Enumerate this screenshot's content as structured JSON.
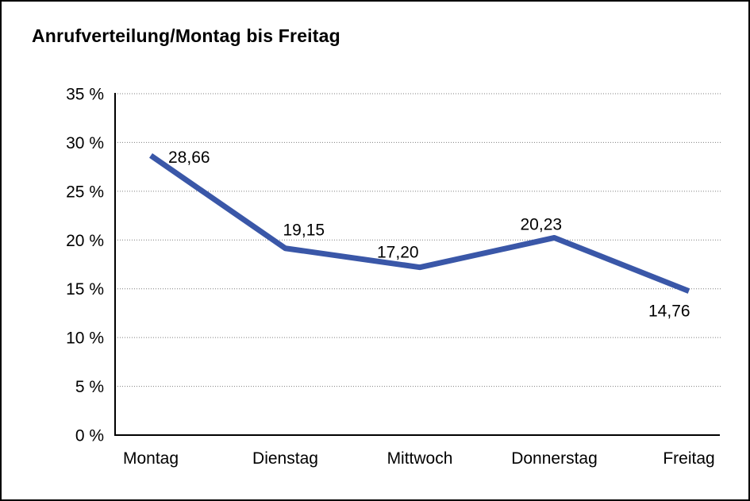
{
  "title": "Anrufverteilung/Montag bis Freitag",
  "chart_data": {
    "type": "line",
    "title": "Anrufverteilung/Montag bis Freitag",
    "categories": [
      "Montag",
      "Dienstag",
      "Mittwoch",
      "Donnerstag",
      "Freitag"
    ],
    "values": [
      28.66,
      19.15,
      17.2,
      20.23,
      14.76
    ],
    "value_labels": [
      "28,66",
      "19,15",
      "17,20",
      "20,23",
      "14,76"
    ],
    "xlabel": "",
    "ylabel": "",
    "ylim": [
      0,
      35
    ],
    "y_tick_step": 5,
    "y_tick_labels": [
      "0 %",
      "5 %",
      "10 %",
      "15 %",
      "20 %",
      "25 %",
      "30 %",
      "35 %"
    ],
    "grid": "horizontal-dotted",
    "legend": "none",
    "series": [
      {
        "name": "Anrufverteilung",
        "values": [
          28.66,
          19.15,
          17.2,
          20.23,
          14.76
        ]
      }
    ]
  },
  "colors": {
    "line": "#3A57A8",
    "grid": "#7f7f7f",
    "axis": "#000000",
    "text": "#000000",
    "background": "#ffffff",
    "border": "#000000"
  }
}
